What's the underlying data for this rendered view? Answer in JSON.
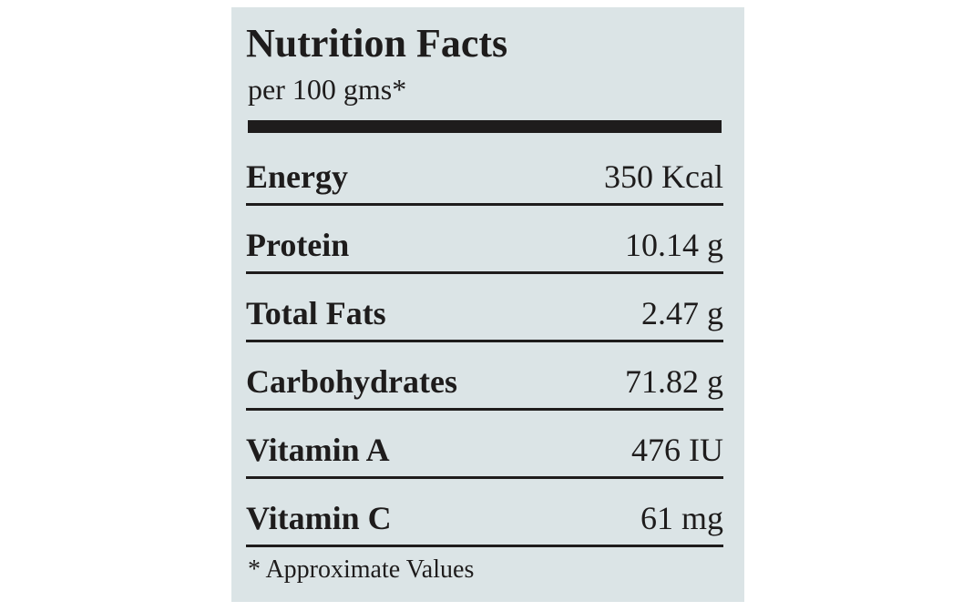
{
  "header": {
    "title": "Nutrition Facts",
    "subtitle": "per 100 gms*"
  },
  "table": {
    "rows": [
      [
        "Energy",
        "350 Kcal"
      ],
      [
        "Protein",
        "10.14 g"
      ],
      [
        "Total Fats",
        "2.47 g"
      ],
      [
        "Carbohydrates",
        "71.82 g"
      ],
      [
        "Vitamin A",
        "476 IU"
      ],
      [
        "Vitamin C",
        "61 mg"
      ]
    ]
  },
  "footnote": "* Approximate Values"
}
